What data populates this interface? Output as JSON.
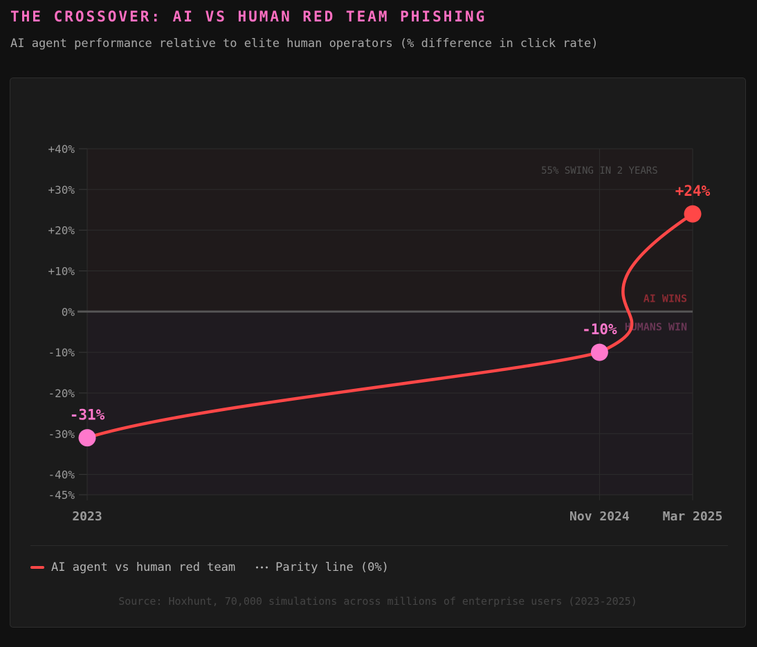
{
  "header": {
    "title": "THE CROSSOVER: AI VS HUMAN RED TEAM PHISHING",
    "subtitle": "AI agent performance relative to elite human operators (% difference in click rate)"
  },
  "chart_data": {
    "type": "line",
    "title": "THE CROSSOVER: AI VS HUMAN RED TEAM PHISHING",
    "subtitle": "AI agent performance relative to elite human operators (% difference in click rate)",
    "x_categories": [
      "2023",
      "Nov 2024",
      "Mar 2025"
    ],
    "x_positions": [
      0,
      22,
      26
    ],
    "ylim": [
      -45,
      40
    ],
    "y_ticks": [
      40,
      30,
      20,
      10,
      0,
      -10,
      -20,
      -30,
      -40,
      -45
    ],
    "y_tick_labels": [
      "+40%",
      "+30%",
      "+20%",
      "+10%",
      "0%",
      "-10%",
      "-20%",
      "-30%",
      "-40%",
      "-45%"
    ],
    "series": [
      {
        "name": "AI agent vs human red team",
        "values": [
          -31,
          -10,
          24
        ],
        "data_labels": [
          "-31%",
          "-10%",
          "+24%"
        ],
        "color": "#ff4747",
        "point_colors": [
          "#ff78cc",
          "#ff78cc",
          "#ff4747"
        ]
      }
    ],
    "reference_line": {
      "name": "Parity line (0%)",
      "value": 0,
      "color": "#555555"
    },
    "zone_labels": {
      "above": "AI WINS",
      "below": "HUMANS WIN"
    },
    "annotation": "55% SWING IN 2 YEARS",
    "grid": true,
    "legend_position": "bottom-left",
    "colors": {
      "line": "#ff4747",
      "neg_point": "#ff78cc",
      "pos_point": "#ff4747",
      "ai_zone_text": "#8b2a32",
      "human_zone_text": "#6a3655"
    }
  },
  "legend": {
    "items": [
      {
        "label": "AI agent vs human red team",
        "icon": "solid-line"
      },
      {
        "label": "Parity line (0%)",
        "icon": "dotted-line"
      }
    ]
  },
  "source": "Source: Hoxhunt, 70,000 simulations across millions of enterprise users (2023-2025)"
}
